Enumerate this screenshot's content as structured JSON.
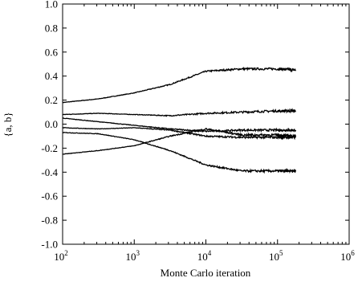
{
  "chart_data": {
    "type": "line",
    "xlabel": "Monte Carlo iteration",
    "ylabel": "{a, b}",
    "x_scale": "log",
    "xlim": [
      100,
      1000000
    ],
    "ylim": [
      -1.0,
      1.0
    ],
    "grid": false,
    "x_ticks": [
      {
        "value": 100,
        "base": "10",
        "exp": "2"
      },
      {
        "value": 1000,
        "base": "10",
        "exp": "3"
      },
      {
        "value": 10000,
        "base": "10",
        "exp": "4"
      },
      {
        "value": 100000,
        "base": "10",
        "exp": "5"
      },
      {
        "value": 1000000,
        "base": "10",
        "exp": "6"
      }
    ],
    "y_ticks": [
      "-1.0",
      "-0.8",
      "-0.6",
      "-0.4",
      "-0.2",
      "0.0",
      "0.2",
      "0.4",
      "0.6",
      "0.8",
      "1.0"
    ],
    "series": [
      {
        "values": [
          [
            100,
            0.18
          ],
          [
            316,
            0.21
          ],
          [
            1000,
            0.26
          ],
          [
            3162,
            0.33
          ],
          [
            10000,
            0.44
          ],
          [
            31623,
            0.46
          ],
          [
            100000,
            0.46
          ],
          [
            180000,
            0.45
          ]
        ]
      },
      {
        "values": [
          [
            100,
            0.08
          ],
          [
            316,
            0.09
          ],
          [
            1000,
            0.08
          ],
          [
            3162,
            0.07
          ],
          [
            10000,
            0.09
          ],
          [
            31623,
            0.1
          ],
          [
            100000,
            0.11
          ],
          [
            180000,
            0.11
          ]
        ]
      },
      {
        "values": [
          [
            100,
            0.05
          ],
          [
            316,
            0.02
          ],
          [
            1000,
            -0.01
          ],
          [
            3162,
            -0.04
          ],
          [
            10000,
            -0.06
          ],
          [
            31623,
            -0.05
          ],
          [
            100000,
            -0.05
          ],
          [
            180000,
            -0.05
          ]
        ]
      },
      {
        "values": [
          [
            100,
            -0.03
          ],
          [
            316,
            -0.04
          ],
          [
            1000,
            -0.03
          ],
          [
            3162,
            -0.05
          ],
          [
            10000,
            -0.1
          ],
          [
            31623,
            -0.11
          ],
          [
            100000,
            -0.11
          ],
          [
            180000,
            -0.11
          ]
        ]
      },
      {
        "values": [
          [
            100,
            -0.07
          ],
          [
            316,
            -0.08
          ],
          [
            1000,
            -0.13
          ],
          [
            3162,
            -0.22
          ],
          [
            10000,
            -0.34
          ],
          [
            31623,
            -0.39
          ],
          [
            100000,
            -0.39
          ],
          [
            180000,
            -0.39
          ]
        ]
      },
      {
        "values": [
          [
            100,
            -0.25
          ],
          [
            316,
            -0.22
          ],
          [
            1000,
            -0.18
          ],
          [
            3162,
            -0.1
          ],
          [
            10000,
            -0.04
          ],
          [
            31623,
            -0.09
          ],
          [
            100000,
            -0.09
          ],
          [
            180000,
            -0.1
          ]
        ]
      }
    ]
  }
}
